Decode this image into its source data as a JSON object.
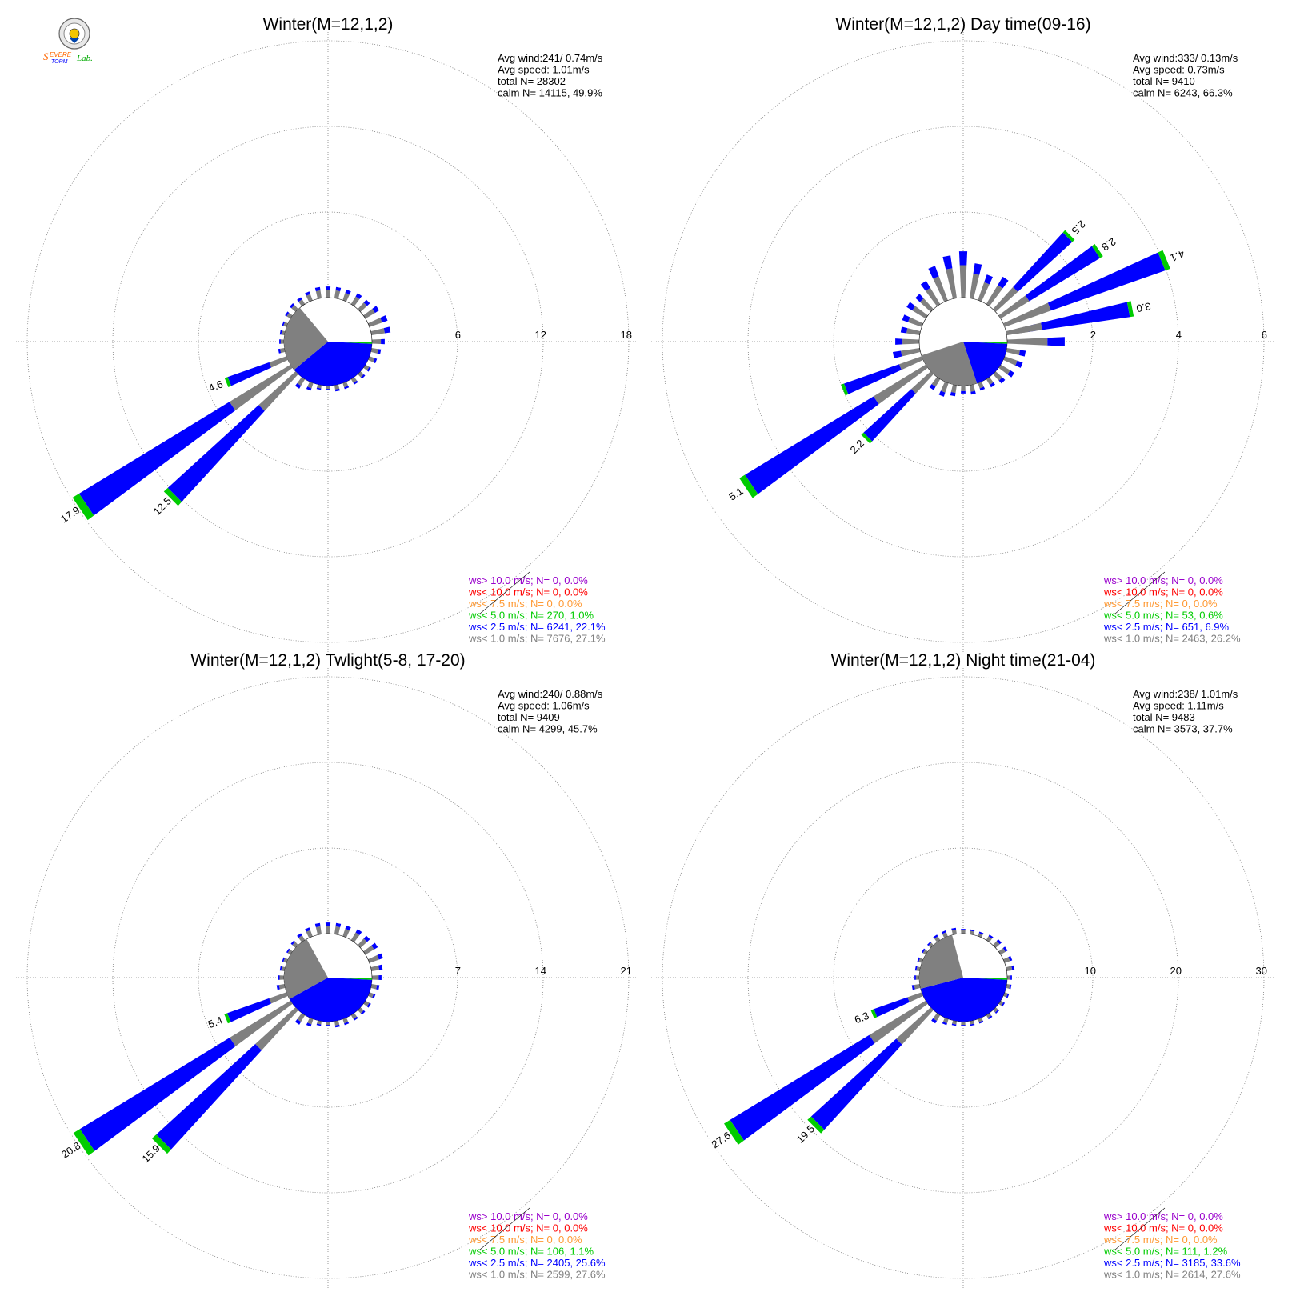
{
  "logo": {
    "text": "Severe Storm Lab.",
    "colors": {
      "severe": "#ff6600",
      "storm": "#0000ff",
      "lab": "#00aa00"
    }
  },
  "colors": {
    "ws_gt_10": "#9900cc",
    "ws_lt_10": "#ff0000",
    "ws_lt_7_5": "#ff9933",
    "ws_lt_5": "#00cc00",
    "ws_lt_2_5": "#0000ff",
    "ws_lt_1": "#808080",
    "grid": "#808080"
  },
  "chart_data": [
    {
      "type": "wind-rose",
      "title": "Winter(M=12,1,2)",
      "r_ticks": [
        "6",
        "12",
        "18"
      ],
      "stats": [
        "Avg wind:241/ 0.74m/s",
        "Avg speed: 1.01m/s",
        "total N=       28302",
        "calm N=  14115,  49.9%"
      ],
      "legend": [
        "ws> 10.0 m/s; N=     0,  0.0%",
        "ws< 10.0 m/s; N=     0,  0.0%",
        "ws<  7.5 m/s; N=     0,  0.0%",
        "ws<  5.0 m/s; N=   270,  1.0%",
        "ws<  2.5 m/s; N=  6241, 22.1%",
        "ws<  1.0 m/s; N=  7676, 27.1%"
      ],
      "peaks": [
        {
          "dir": 236,
          "total": 17.9,
          "label": "17.9"
        },
        {
          "dir": 225,
          "total": 12.5,
          "label": "12.5"
        },
        {
          "dir": 248,
          "total": 4.6,
          "label": "4.6"
        }
      ]
    },
    {
      "type": "wind-rose",
      "title": "Winter(M=12,1,2) Day time(09-16)",
      "r_ticks": [
        "2",
        "4",
        "6"
      ],
      "stats": [
        "Avg wind:333/ 0.13m/s",
        "Avg speed: 0.73m/s",
        "total N=        9410",
        "calm N=   6243,  66.3%"
      ],
      "legend": [
        "ws> 10.0 m/s; N=     0,  0.0%",
        "ws< 10.0 m/s; N=     0,  0.0%",
        "ws<  7.5 m/s; N=     0,  0.0%",
        "ws<  5.0 m/s; N=    53,  0.6%",
        "ws<  2.5 m/s; N=   651,  6.9%",
        "ws<  1.0 m/s; N=  2463, 26.2%"
      ],
      "peaks": [
        {
          "dir": 236,
          "total": 5.1,
          "label": "5.1"
        },
        {
          "dir": 225,
          "total": 2.2,
          "label": "2.2"
        },
        {
          "dir": 248,
          "total": 2.0,
          "label": ""
        },
        {
          "dir": 45,
          "total": 2.5,
          "label": "2.5"
        },
        {
          "dir": 56,
          "total": 2.8,
          "label": "2.8"
        },
        {
          "dir": 68,
          "total": 4.1,
          "label": "4.1"
        },
        {
          "dir": 79,
          "total": 3.0,
          "label": "3.0"
        }
      ]
    },
    {
      "type": "wind-rose",
      "title": "Winter(M=12,1,2) Twlight(5-8, 17-20)",
      "r_ticks": [
        "7",
        "14",
        "21"
      ],
      "stats": [
        "Avg wind:240/ 0.88m/s",
        "Avg speed: 1.06m/s",
        "total N=        9409",
        "calm N=   4299,  45.7%"
      ],
      "legend": [
        "ws> 10.0 m/s; N=     0,  0.0%",
        "ws< 10.0 m/s; N=     0,  0.0%",
        "ws<  7.5 m/s; N=     0,  0.0%",
        "ws<  5.0 m/s; N=   106,  1.1%",
        "ws<  2.5 m/s; N=  2405, 25.6%",
        "ws<  1.0 m/s; N=  2599, 27.6%"
      ],
      "peaks": [
        {
          "dir": 236,
          "total": 20.8,
          "label": "20.8"
        },
        {
          "dir": 225,
          "total": 15.9,
          "label": "15.9"
        },
        {
          "dir": 248,
          "total": 5.4,
          "label": "5.4"
        }
      ]
    },
    {
      "type": "wind-rose",
      "title": "Winter(M=12,1,2) Night time(21-04)",
      "r_ticks": [
        "10",
        "20",
        "30"
      ],
      "stats": [
        "Avg wind:238/ 1.01m/s",
        "Avg speed: 1.11m/s",
        "total N=        9483",
        "calm N=   3573,  37.7%"
      ],
      "legend": [
        "ws> 10.0 m/s; N=     0,  0.0%",
        "ws< 10.0 m/s; N=     0,  0.0%",
        "ws<  7.5 m/s; N=     0,  0.0%",
        "ws<  5.0 m/s; N=   111,  1.2%",
        "ws<  2.5 m/s; N=  3185, 33.6%",
        "ws<  1.0 m/s; N=  2614, 27.6%"
      ],
      "peaks": [
        {
          "dir": 236,
          "total": 27.6,
          "label": "27.6"
        },
        {
          "dir": 225,
          "total": 19.5,
          "label": "19.5"
        },
        {
          "dir": 248,
          "total": 6.3,
          "label": "6.3"
        }
      ]
    }
  ]
}
